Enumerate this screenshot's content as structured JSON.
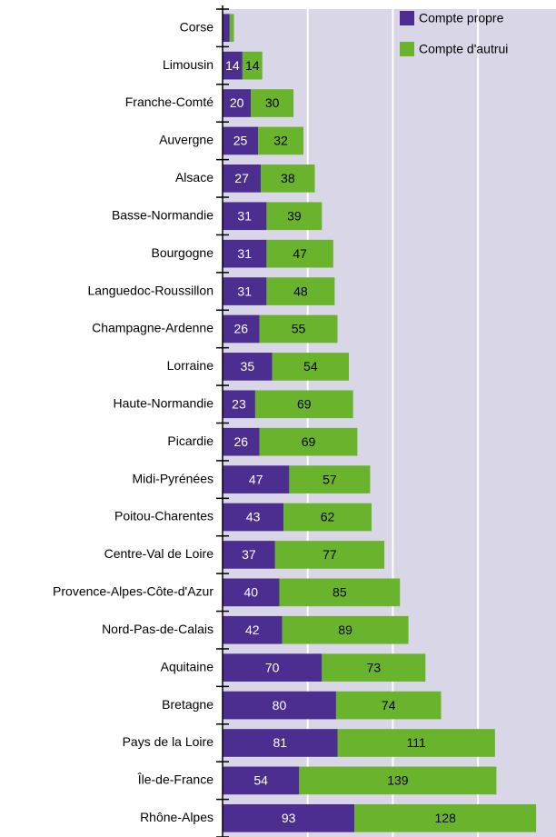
{
  "chart_data": {
    "type": "stacked-barh",
    "categories": [
      "Corse",
      "Limousin",
      "Franche-Comté",
      "Auvergne",
      "Alsace",
      "Basse-Normandie",
      "Bourgogne",
      "Languedoc-Roussillon",
      "Champagne-Ardenne",
      "Lorraine",
      "Haute-Normandie",
      "Picardie",
      "Midi-Pyrénées",
      "Poitou-Charentes",
      "Centre-Val de Loire",
      "Provence-Alpes-Côte-d'Azur",
      "Nord-Pas-de-Calais",
      "Aquitaine",
      "Bretagne",
      "Pays de la Loire",
      "Île-de-France",
      "Rhône-Alpes"
    ],
    "series": [
      {
        "name": "Compte propre",
        "color": "#4b2e8f",
        "values": [
          5,
          14,
          20,
          25,
          27,
          31,
          31,
          31,
          26,
          35,
          23,
          26,
          47,
          43,
          37,
          40,
          42,
          70,
          80,
          81,
          54,
          93
        ]
      },
      {
        "name": "Compte d'autrui",
        "color": "#6ab42d",
        "values": [
          3,
          14,
          30,
          32,
          38,
          39,
          47,
          48,
          55,
          54,
          69,
          69,
          57,
          62,
          77,
          85,
          89,
          73,
          74,
          111,
          139,
          128
        ]
      }
    ],
    "xlim": [
      0,
      235
    ],
    "xticks": [
      60,
      120,
      180
    ],
    "grid": true,
    "legend": "top-right"
  }
}
